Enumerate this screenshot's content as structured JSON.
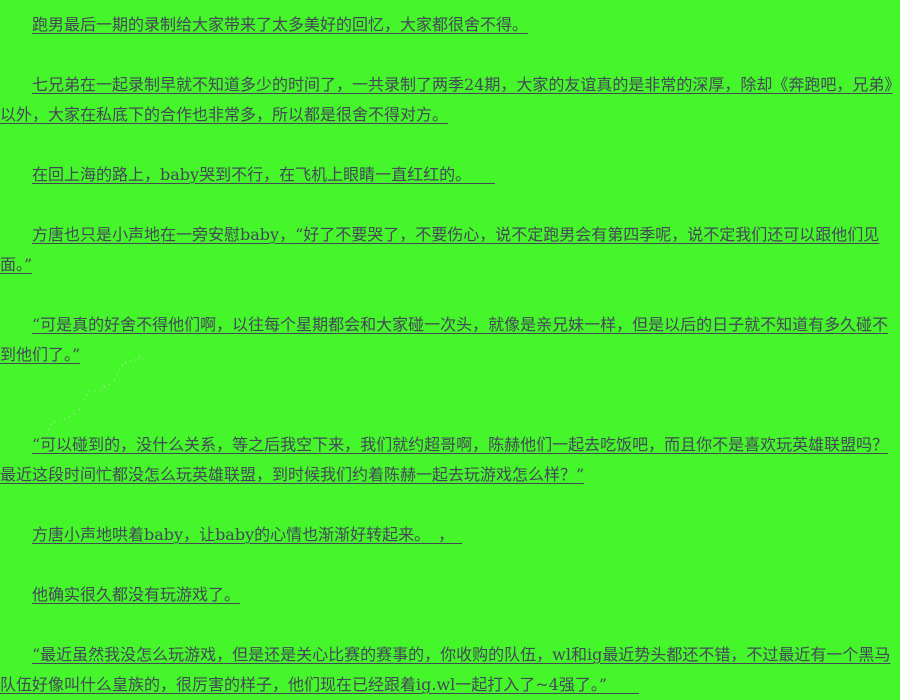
{
  "page": {
    "background_color": "#44f62a",
    "text_color": "#46465a",
    "underlined": true
  },
  "content": {
    "paragraphs": [
      {
        "text": "跑男最后一期的录制给大家带来了太多美好的回忆，大家都很舍不得。"
      },
      {
        "text": "七兄弟在一起录制早就不知道多少的时间了，一共录制了两季24期，大家的友谊真的是非常的深厚，除却《奔跑吧，兄弟》以外，大家在私底下的合作也非常多，所以都是很舍不得对方。"
      },
      {
        "text": "在回上海的路上，baby哭到不行，在飞机上眼睛一直红红的。　　"
      },
      {
        "text": "方唐也只是小声地在一旁安慰baby，“好了不要哭了，不要伤心，说不定跑男会有第四季呢，说不定我们还可以跟他们见面。”"
      },
      {
        "text": "“可是真的好舍不得他们啊，以往每个星期都会和大家碰一次头，就像是亲兄妹一样，但是以后的日子就不知道有多久碰不到他们了。”"
      },
      {
        "text": "“可以碰到的，没什么关系，等之后我空下来，我们就约超哥啊，陈赫他们一起去吃饭吧，而且你不是喜欢玩英雄联盟吗？最近这段时间忙都没怎么玩英雄联盟，到时候我们约着陈赫一起去玩游戏怎么样？”"
      },
      {
        "text": "方唐小声地哄着baby，让baby的心情也渐渐好转起来。　，　"
      },
      {
        "text": "他确实很久都没有玩游戏了。"
      },
      {
        "text": "“最近虽然我没怎么玩游戏，但是还是关心比赛的赛事的，你收购的队伍，wl和ig最近势头都还不错，不过最近有一个黑马队伍好像叫什么皇族的，很厉害的样子，他们现在已经跟着ig.wl一起打入了~4强了。”　　"
      }
    ]
  },
  "watermark": {
    "line1": ".·''·.,¸¸.·''·.,¸¸.·''·.,",
    "line2": "¸.·''·.,¸¸.·''·."
  }
}
